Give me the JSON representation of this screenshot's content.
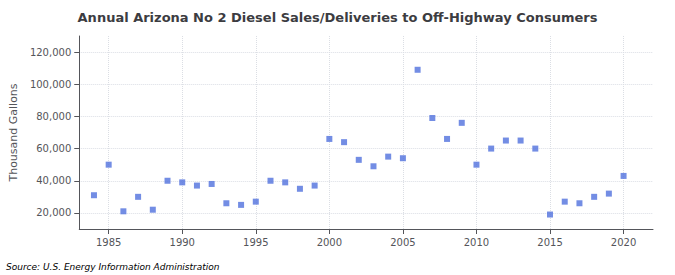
{
  "chart_data": {
    "type": "scatter",
    "title": "Annual Arizona No 2 Diesel Sales/Deliveries to Off-Highway Consumers",
    "ylabel": "Thousand Gallons",
    "annotation": "Source: U.S. Energy Information Administration",
    "x": [
      1984,
      1985,
      1986,
      1987,
      1988,
      1989,
      1990,
      1991,
      1992,
      1993,
      1994,
      1995,
      1996,
      1997,
      1998,
      1999,
      2000,
      2001,
      2002,
      2003,
      2004,
      2005,
      2006,
      2007,
      2008,
      2009,
      2010,
      2011,
      2012,
      2013,
      2014,
      2015,
      2016,
      2017,
      2018,
      2019,
      2020
    ],
    "values": [
      31000,
      50000,
      21000,
      30000,
      22000,
      40000,
      39000,
      37000,
      38000,
      26000,
      25000,
      27000,
      40000,
      39000,
      35000,
      37000,
      66000,
      64000,
      53000,
      49000,
      55000,
      54000,
      109000,
      79000,
      66000,
      76000,
      50000,
      60000,
      65000,
      65000,
      60000,
      19000,
      27000,
      26000,
      30000,
      32000,
      43000
    ],
    "marker": "square",
    "xlim": [
      1983,
      2022
    ],
    "xticks": [
      1985,
      1990,
      1995,
      2000,
      2005,
      2010,
      2015,
      2020
    ],
    "ylim": [
      10000,
      130000
    ],
    "yticks": [
      {
        "value": 20000,
        "label": "20,000"
      },
      {
        "value": 40000,
        "label": "40,000"
      },
      {
        "value": 60000,
        "label": "60,000"
      },
      {
        "value": 80000,
        "label": "80,000"
      },
      {
        "value": 100000,
        "label": "100,000"
      },
      {
        "value": 120000,
        "label": "120,000"
      }
    ],
    "grid": true
  }
}
